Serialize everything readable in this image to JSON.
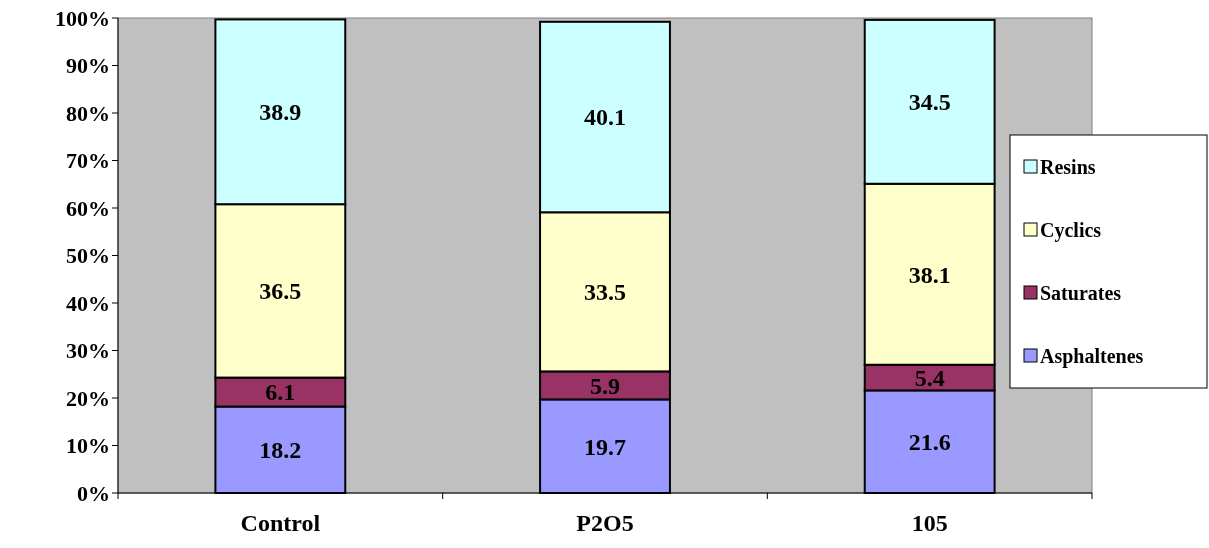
{
  "chart_data": {
    "type": "bar",
    "stacked": true,
    "categories": [
      "Control",
      "P2O5",
      "105"
    ],
    "series": [
      {
        "name": "Asphaltenes",
        "color": "#9999ff",
        "values": [
          18.2,
          19.7,
          21.6
        ]
      },
      {
        "name": "Saturates",
        "color": "#993366",
        "values": [
          6.1,
          5.9,
          5.4
        ]
      },
      {
        "name": "Cyclics",
        "color": "#ffffcc",
        "values": [
          36.5,
          33.5,
          38.1
        ]
      },
      {
        "name": "Resins",
        "color": "#ccffff",
        "values": [
          38.9,
          40.1,
          34.5
        ]
      }
    ],
    "ylim": [
      0,
      100
    ],
    "yticks": [
      {
        "value": 0,
        "label": "0%"
      },
      {
        "value": 10,
        "label": "10%"
      },
      {
        "value": 20,
        "label": "20%"
      },
      {
        "value": 30,
        "label": "30%"
      },
      {
        "value": 40,
        "label": "40%"
      },
      {
        "value": 50,
        "label": "50%"
      },
      {
        "value": 60,
        "label": "60%"
      },
      {
        "value": 70,
        "label": "70%"
      },
      {
        "value": 80,
        "label": "80%"
      },
      {
        "value": 90,
        "label": "90%"
      },
      {
        "value": 100,
        "label": "100%"
      }
    ],
    "data_labels": true,
    "legend": "right",
    "grid": false
  }
}
